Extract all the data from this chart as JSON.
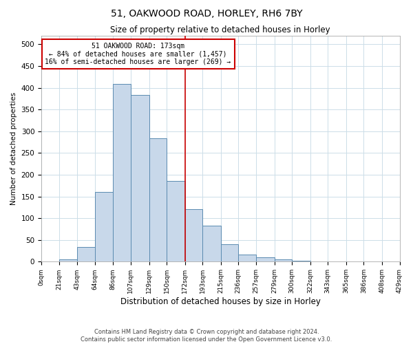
{
  "title": "51, OAKWOOD ROAD, HORLEY, RH6 7BY",
  "subtitle": "Size of property relative to detached houses in Horley",
  "xlabel": "Distribution of detached houses by size in Horley",
  "ylabel": "Number of detached properties",
  "bin_edges": [
    0,
    21,
    43,
    64,
    86,
    107,
    129,
    150,
    172,
    193,
    215,
    236,
    257,
    279,
    300,
    322,
    343,
    365,
    386,
    408,
    429
  ],
  "bar_heights": [
    1,
    5,
    33,
    160,
    408,
    383,
    283,
    185,
    120,
    83,
    40,
    17,
    10,
    5,
    2,
    1,
    0,
    0,
    0,
    0
  ],
  "bar_fill_color": "#c8d8ea",
  "bar_edge_color": "#5a8ab0",
  "vline_x": 172,
  "vline_color": "#cc0000",
  "ylim": [
    0,
    520
  ],
  "yticks": [
    0,
    50,
    100,
    150,
    200,
    250,
    300,
    350,
    400,
    450,
    500
  ],
  "annotation_title": "51 OAKWOOD ROAD: 173sqm",
  "annotation_line1": "← 84% of detached houses are smaller (1,457)",
  "annotation_line2": "16% of semi-detached houses are larger (269) →",
  "annotation_box_color": "#cc0000",
  "footer_line1": "Contains HM Land Registry data © Crown copyright and database right 2024.",
  "footer_line2": "Contains public sector information licensed under the Open Government Licence v3.0.",
  "tick_labels": [
    "0sqm",
    "21sqm",
    "43sqm",
    "64sqm",
    "86sqm",
    "107sqm",
    "129sqm",
    "150sqm",
    "172sqm",
    "193sqm",
    "215sqm",
    "236sqm",
    "257sqm",
    "279sqm",
    "300sqm",
    "322sqm",
    "343sqm",
    "365sqm",
    "386sqm",
    "408sqm",
    "429sqm"
  ],
  "grid_color": "#ccdde8",
  "background_color": "#ffffff",
  "title_fontsize": 10,
  "subtitle_fontsize": 8.5,
  "ylabel_fontsize": 7.5,
  "xlabel_fontsize": 8.5,
  "ytick_fontsize": 7.5,
  "xtick_fontsize": 6.5
}
